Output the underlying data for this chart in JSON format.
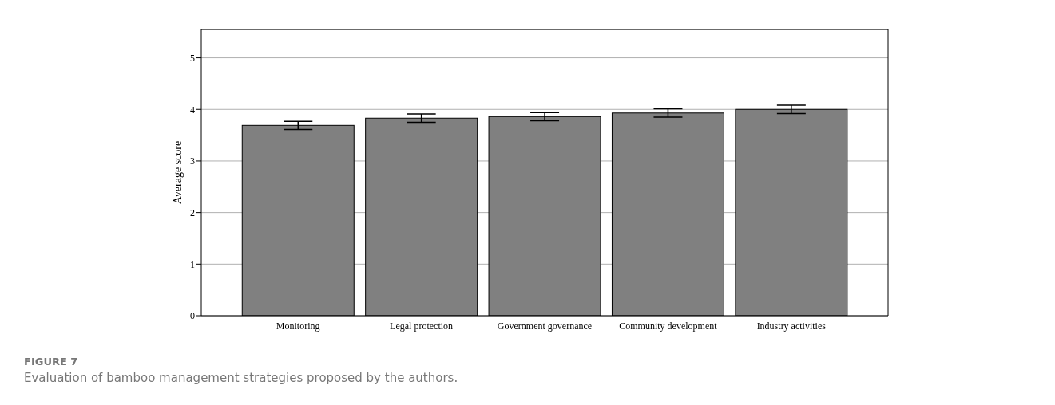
{
  "chart_data": {
    "type": "bar",
    "ylabel": "Average score",
    "categories": [
      "Monitoring",
      "Legal protection",
      "Government governance",
      "Community development",
      "Industry activities"
    ],
    "values": [
      3.69,
      3.83,
      3.86,
      3.93,
      4.0
    ],
    "errors": [
      0.08,
      0.08,
      0.08,
      0.08,
      0.08
    ],
    "color": "#808080",
    "ylim": [
      0,
      5.55
    ],
    "yticks": [
      0,
      1,
      2,
      3,
      4,
      5
    ],
    "grid": "y",
    "legend": false,
    "annotations": [
      "FIGURE 7",
      "Evaluation of bamboo management strategies proposed by the authors."
    ]
  }
}
